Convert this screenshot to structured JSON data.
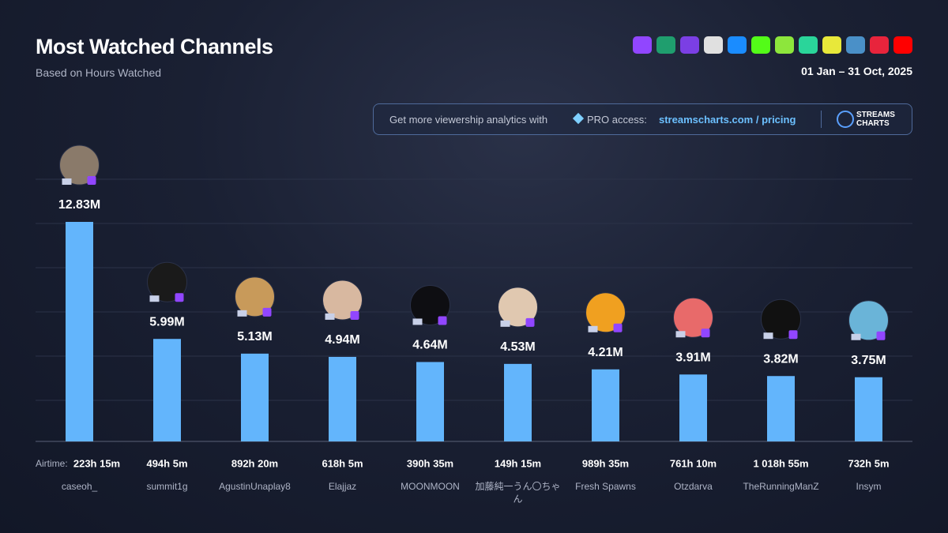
{
  "header": {
    "title": "Most Watched Channels",
    "subtitle": "Based on Hours Watched",
    "date_range": "01 Jan – 31 Oct, 2025"
  },
  "banner": {
    "text": "Get more viewership analytics with",
    "pro": "PRO access:",
    "link": "streamscharts.com / pricing",
    "logo_top": "STREAMS",
    "logo_bottom": "CHARTS"
  },
  "chart_data": {
    "type": "bar",
    "categories": [
      "caseoh_",
      "summit1g",
      "AgustinUnaplay8",
      "Elajjaz",
      "MOONMOON",
      "加藤純一うん〇ちゃん",
      "Fresh Spawns",
      "Otzdarva",
      "TheRunningManZ",
      "Insym"
    ],
    "values": [
      12.83,
      5.99,
      5.13,
      4.94,
      4.64,
      4.53,
      4.21,
      3.91,
      3.82,
      3.75
    ],
    "value_labels": [
      "12.83M",
      "5.99M",
      "5.13M",
      "4.94M",
      "4.64M",
      "4.53M",
      "4.21M",
      "3.91M",
      "3.82M",
      "3.75M"
    ],
    "airtime_label": "Airtime:",
    "airtime": [
      "223h 15m",
      "494h 5m",
      "892h 20m",
      "618h 5m",
      "390h 35m",
      "149h 15m",
      "989h 35m",
      "761h 10m",
      "1 018h 55m",
      "732h 5m"
    ],
    "color": "#63b5fc"
  }
}
